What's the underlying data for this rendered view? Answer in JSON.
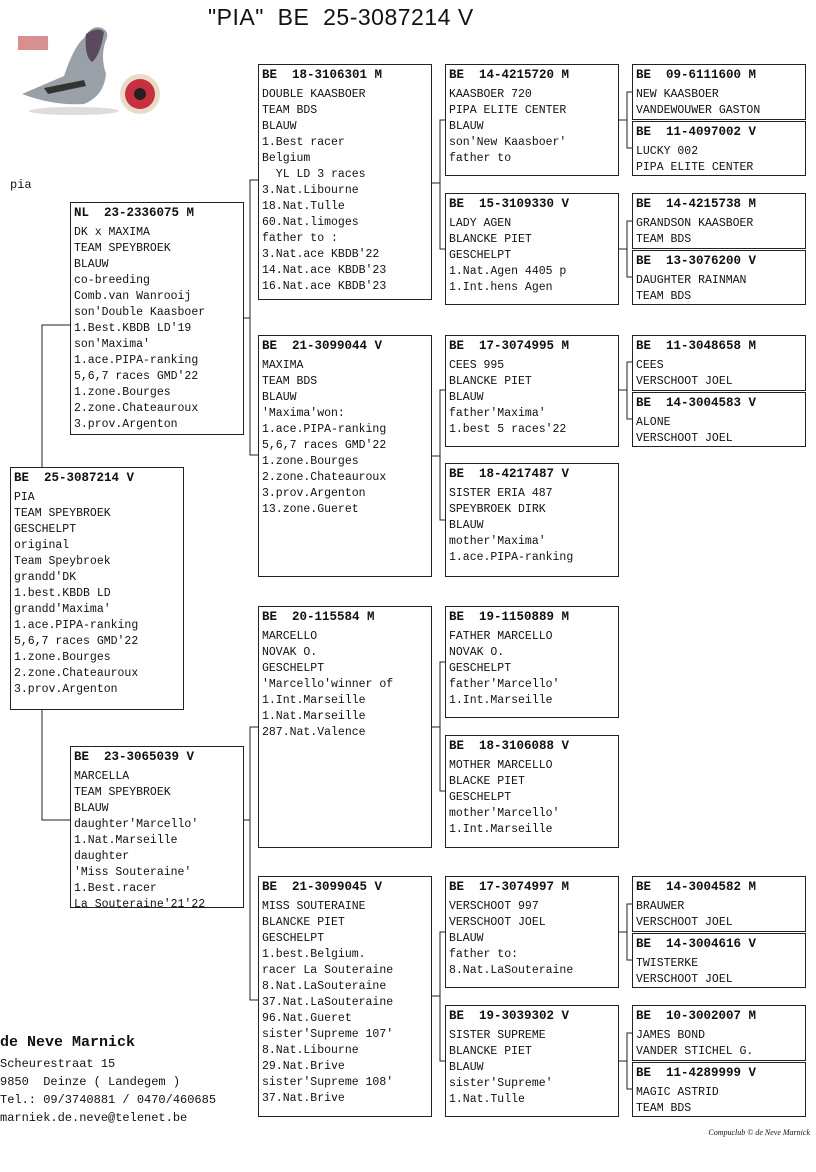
{
  "title": "\"PIA\"  BE  25-3087214 V",
  "nickname": "pia",
  "photo": {
    "description_icon": "pigeon-photo-with-eye"
  },
  "subject": {
    "hdr": "BE  25-3087214 V",
    "lines": [
      "PIA",
      "TEAM SPEYBROEK",
      "GESCHELPT",
      "original",
      "Team Speybroek",
      "grandd'DK",
      "1.best.KBDB LD",
      "grandd'Maxima'",
      "1.ace.PIPA-ranking",
      "5,6,7 races GMD'22",
      "1.zone.Bourges",
      "2.zone.Chateauroux",
      "3.prov.Argenton"
    ]
  },
  "sire": {
    "hdr": "NL  23-2336075 M",
    "lines": [
      "DK x MAXIMA",
      "TEAM SPEYBROEK",
      "BLAUW",
      "co-breeding",
      "Comb.van Wanrooij",
      "son'Double Kaasboer",
      "1.Best.KBDB LD'19",
      "son'Maxima'",
      "1.ace.PIPA-ranking",
      "5,6,7 races GMD'22",
      "1.zone.Bourges",
      "2.zone.Chateauroux",
      "3.prov.Argenton"
    ]
  },
  "dam": {
    "hdr": "BE  23-3065039 V",
    "lines": [
      "MARCELLA",
      "TEAM SPEYBROEK",
      "BLAUW",
      "daughter'Marcello'",
      "1.Nat.Marseille",
      "daughter",
      "'Miss Souteraine'",
      "1.Best.racer",
      "La Souteraine'21'22"
    ]
  },
  "gen3": [
    {
      "hdr": "BE  18-3106301 M",
      "lines": [
        "DOUBLE KAASBOER",
        "TEAM BDS",
        "BLAUW",
        "1.Best racer",
        "Belgium",
        "  YL LD 3 races",
        "3.Nat.Libourne",
        "18.Nat.Tulle",
        "60.Nat.limoges",
        "father to :",
        "3.Nat.ace KBDB'22",
        "14.Nat.ace KBDB'23",
        "16.Nat.ace KBDB'23"
      ]
    },
    {
      "hdr": "BE  21-3099044 V",
      "lines": [
        "MAXIMA",
        "TEAM BDS",
        "BLAUW",
        "'Maxima'won:",
        "1.ace.PIPA-ranking",
        "5,6,7 races GMD'22",
        "1.zone.Bourges",
        "2.zone.Chateauroux",
        "3.prov.Argenton",
        "13.zone.Gueret"
      ]
    },
    {
      "hdr": "BE  20-115584 M",
      "lines": [
        "MARCELLO",
        "NOVAK O.",
        "GESCHELPT",
        "'Marcello'winner of",
        "1.Int.Marseille",
        "1.Nat.Marseille",
        "287.Nat.Valence"
      ]
    },
    {
      "hdr": "BE  21-3099045 V",
      "lines": [
        "MISS SOUTERAINE",
        "BLANCKE PIET",
        "GESCHELPT",
        "1.best.Belgium.",
        "racer La Souteraine",
        "8.Nat.LaSouteraine",
        "37.Nat.LaSouteraine",
        "96.Nat.Gueret",
        "sister'Supreme 107'",
        "8.Nat.Libourne",
        "29.Nat.Brive",
        "sister'Supreme 108'",
        "37.Nat.Brive"
      ]
    }
  ],
  "gen4": [
    {
      "hdr": "BE  14-4215720 M",
      "lines": [
        "KAASBOER 720",
        "PIPA ELITE CENTER",
        "BLAUW",
        "son'New Kaasboer'",
        "father to"
      ]
    },
    {
      "hdr": "BE  15-3109330 V",
      "lines": [
        "LADY AGEN",
        "BLANCKE PIET",
        "GESCHELPT",
        "1.Nat.Agen 4405 p",
        "1.Int.hens Agen"
      ]
    },
    {
      "hdr": "BE  17-3074995 M",
      "lines": [
        "CEES 995",
        "BLANCKE PIET",
        "BLAUW",
        "father'Maxima'",
        "1.best 5 races'22"
      ]
    },
    {
      "hdr": "BE  18-4217487 V",
      "lines": [
        "SISTER ERIA 487",
        "SPEYBROEK DIRK",
        "BLAUW",
        "mother'Maxima'",
        "1.ace.PIPA-ranking"
      ]
    },
    {
      "hdr": "BE  19-1150889 M",
      "lines": [
        "FATHER MARCELLO",
        "NOVAK O.",
        "GESCHELPT",
        "father'Marcello'",
        "1.Int.Marseille"
      ]
    },
    {
      "hdr": "BE  18-3106088 V",
      "lines": [
        "MOTHER MARCELLO",
        "BLACKE PIET",
        "GESCHELPT",
        "mother'Marcello'",
        "1.Int.Marseille"
      ]
    },
    {
      "hdr": "BE  17-3074997 M",
      "lines": [
        "VERSCHOOT 997",
        "VERSCHOOT JOEL",
        "BLAUW",
        "father to:",
        "8.Nat.LaSouteraine"
      ]
    },
    {
      "hdr": "BE  19-3039302 V",
      "lines": [
        "SISTER SUPREME",
        "BLANCKE PIET",
        "BLAUW",
        "sister'Supreme'",
        "1.Nat.Tulle"
      ]
    }
  ],
  "gen5": [
    {
      "hdr": "BE  09-6111600 M",
      "lines": [
        "NEW KAASBOER",
        "VANDEWOUWER GASTON"
      ]
    },
    {
      "hdr": "BE  11-4097002 V",
      "lines": [
        "LUCKY 002",
        "PIPA ELITE CENTER"
      ]
    },
    {
      "hdr": "BE  14-4215738 M",
      "lines": [
        "GRANDSON KAASBOER",
        "TEAM BDS"
      ]
    },
    {
      "hdr": "BE  13-3076200 V",
      "lines": [
        "DAUGHTER RAINMAN",
        "TEAM BDS"
      ]
    },
    {
      "hdr": "BE  11-3048658 M",
      "lines": [
        "CEES",
        "VERSCHOOT JOEL"
      ]
    },
    {
      "hdr": "BE  14-3004583 V",
      "lines": [
        "ALONE",
        "VERSCHOOT JOEL"
      ]
    },
    {
      "hdr": "BE  14-3004582 M",
      "lines": [
        "BRAUWER",
        "VERSCHOOT JOEL"
      ]
    },
    {
      "hdr": "BE  14-3004616 V",
      "lines": [
        "TWISTERKE",
        "VERSCHOOT JOEL"
      ]
    },
    {
      "hdr": "BE  10-3002007 M",
      "lines": [
        "JAMES BOND",
        "VANDER STICHEL G."
      ]
    },
    {
      "hdr": "BE  11-4289999 V",
      "lines": [
        "MAGIC ASTRID",
        "TEAM BDS"
      ]
    }
  ],
  "owner": {
    "name": "de Neve Marnick",
    "street": "Scheurestraat 15",
    "city": "9850  Deinze ( Landegem )",
    "phone": "Tel.: 09/3740881 / 0470/460685",
    "email": "marniek.de.neve@telenet.be"
  },
  "copyright": "Compuclub © de Neve Marnick"
}
